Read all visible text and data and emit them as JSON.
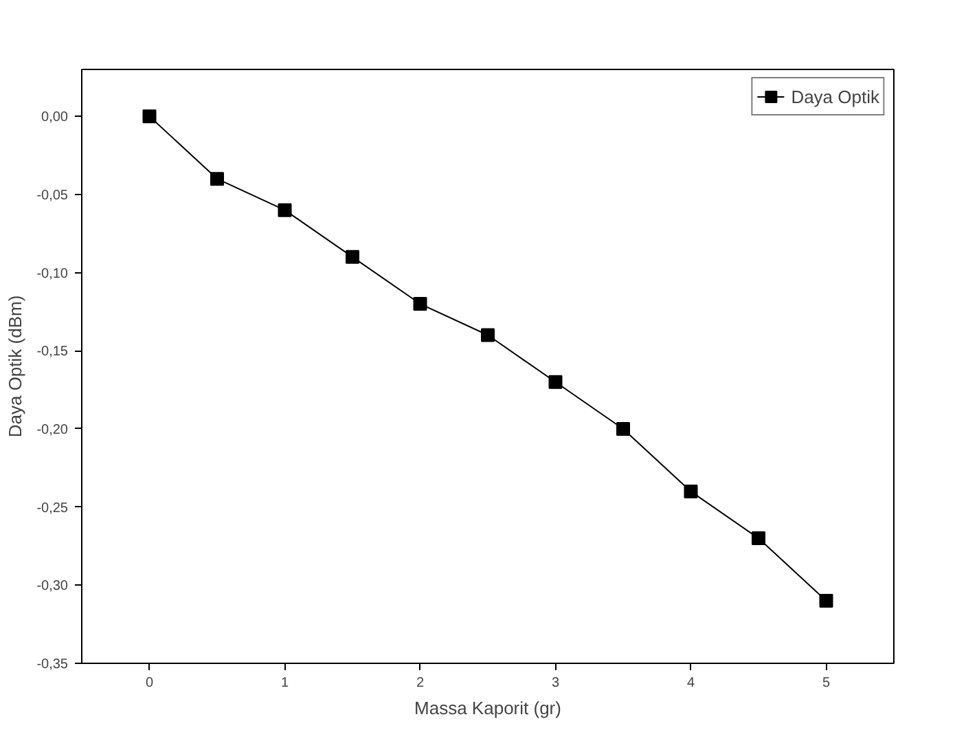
{
  "chart_data": {
    "type": "line",
    "xlabel": "Massa Kaporit (gr)",
    "ylabel": "Daya Optik (dBm)",
    "x": [
      0,
      0.5,
      1,
      1.5,
      2,
      2.5,
      3,
      3.5,
      4,
      4.5,
      5
    ],
    "series": [
      {
        "name": "Daya Optik",
        "color": "#000000",
        "values": [
          0,
          -0.04,
          -0.06,
          -0.09,
          -0.12,
          -0.14,
          -0.17,
          -0.2,
          -0.24,
          -0.27,
          -0.31
        ]
      }
    ],
    "xlim": [
      -0.5,
      5.5
    ],
    "ylim": [
      -0.35,
      0.03
    ],
    "xticks": [
      0,
      1,
      2,
      3,
      4,
      5
    ],
    "yticks": [
      {
        "value": 0,
        "label": "0,00"
      },
      {
        "value": -0.05,
        "label": "-0,05"
      },
      {
        "value": -0.1,
        "label": "-0,10"
      },
      {
        "value": -0.15,
        "label": "-0,15"
      },
      {
        "value": -0.2,
        "label": "-0,20"
      },
      {
        "value": -0.25,
        "label": "-0,25"
      },
      {
        "value": -0.3,
        "label": "-0,30"
      },
      {
        "value": -0.35,
        "label": "-0,35"
      }
    ],
    "marker": "square",
    "line_style": "solid",
    "grid": false,
    "legend": "top right"
  }
}
